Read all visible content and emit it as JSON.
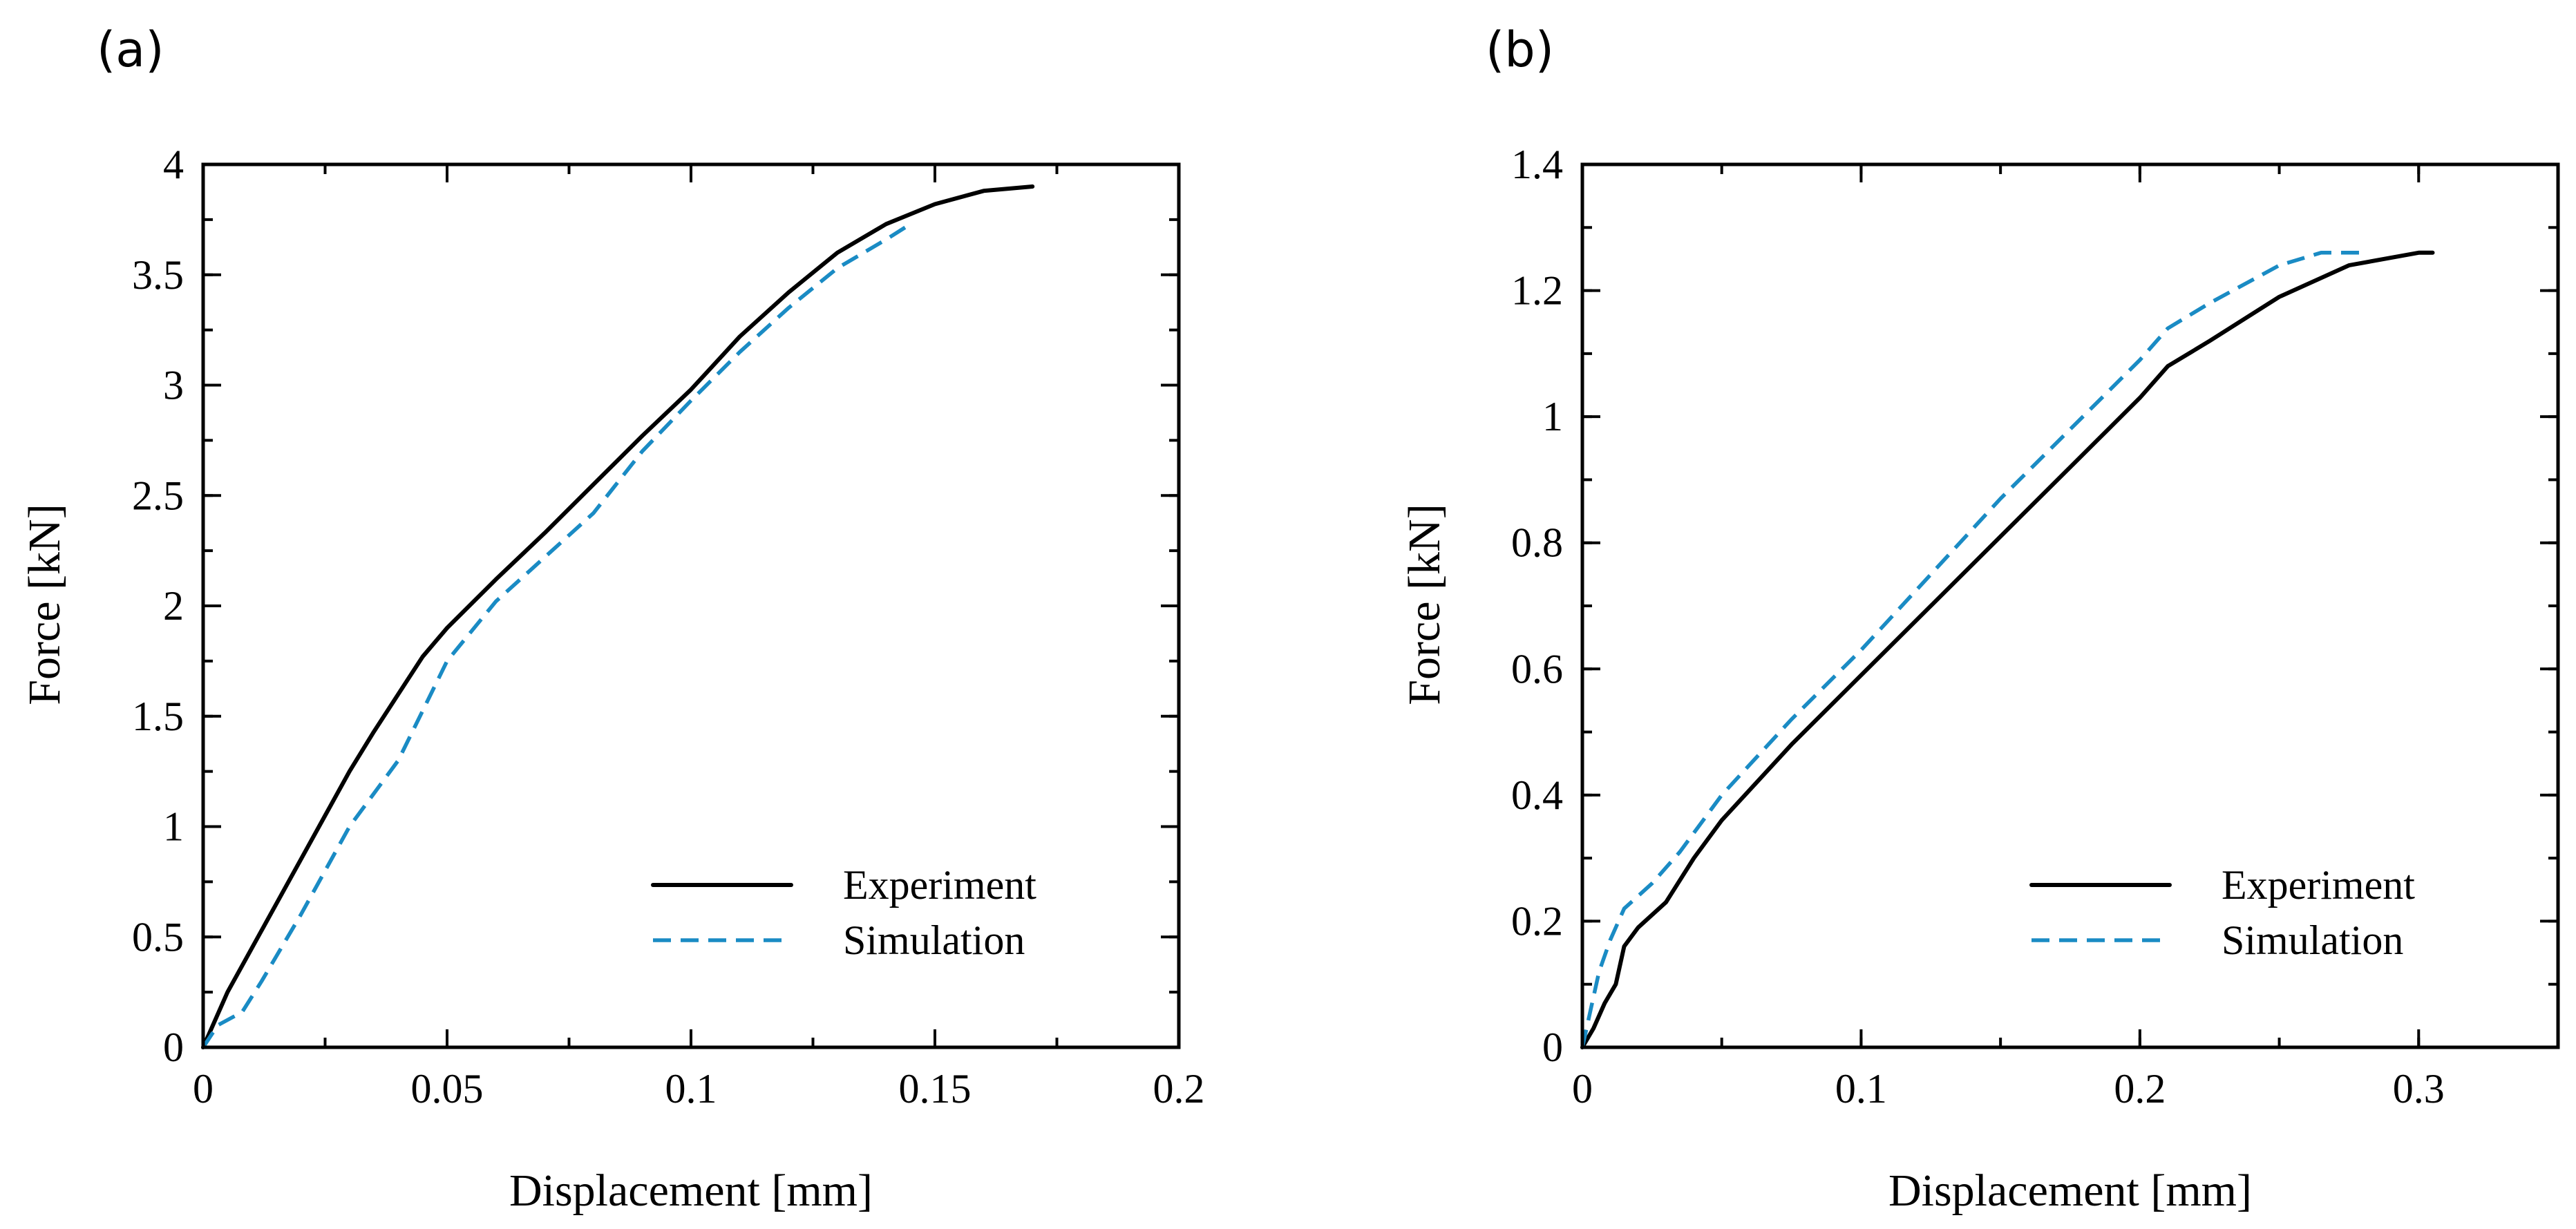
{
  "chart_data": [
    {
      "panel_label": "(a)",
      "type": "line",
      "title": "",
      "xlabel": "Displacement [mm]",
      "ylabel": "Force [kN]",
      "xlim": [
        0,
        0.2
      ],
      "ylim": [
        0,
        4
      ],
      "x_ticks": [
        0,
        0.05,
        0.1,
        0.15,
        0.2
      ],
      "x_tick_labels": [
        "0",
        "0.05",
        "0.1",
        "0.15",
        "0.2"
      ],
      "y_ticks": [
        0,
        0.5,
        1,
        1.5,
        2,
        2.5,
        3,
        3.5,
        4
      ],
      "y_tick_labels": [
        "0",
        "0.5",
        "1",
        "1.5",
        "2",
        "2.5",
        "3",
        "3.5",
        "4"
      ],
      "x_minor_step": 0.025,
      "y_minor_step": 0.25,
      "grid": false,
      "legend_position": "bottom-right",
      "series": [
        {
          "name": "Experiment",
          "color": "#000000",
          "style": "solid",
          "points": [
            [
              0,
              0
            ],
            [
              0.005,
              0.25
            ],
            [
              0.01,
              0.45
            ],
            [
              0.015,
              0.65
            ],
            [
              0.02,
              0.85
            ],
            [
              0.025,
              1.05
            ],
            [
              0.03,
              1.25
            ],
            [
              0.035,
              1.43
            ],
            [
              0.04,
              1.6
            ],
            [
              0.045,
              1.77
            ],
            [
              0.05,
              1.9
            ],
            [
              0.06,
              2.12
            ],
            [
              0.07,
              2.33
            ],
            [
              0.08,
              2.55
            ],
            [
              0.09,
              2.77
            ],
            [
              0.1,
              2.98
            ],
            [
              0.11,
              3.22
            ],
            [
              0.12,
              3.42
            ],
            [
              0.13,
              3.6
            ],
            [
              0.14,
              3.73
            ],
            [
              0.15,
              3.82
            ],
            [
              0.16,
              3.88
            ],
            [
              0.17,
              3.9
            ]
          ]
        },
        {
          "name": "Simulation",
          "color": "#1a8bc4",
          "style": "dashed",
          "points": [
            [
              0,
              0
            ],
            [
              0.003,
              0.1
            ],
            [
              0.008,
              0.16
            ],
            [
              0.012,
              0.3
            ],
            [
              0.02,
              0.6
            ],
            [
              0.03,
              1.0
            ],
            [
              0.04,
              1.3
            ],
            [
              0.05,
              1.75
            ],
            [
              0.06,
              2.02
            ],
            [
              0.07,
              2.22
            ],
            [
              0.08,
              2.42
            ],
            [
              0.09,
              2.7
            ],
            [
              0.1,
              2.93
            ],
            [
              0.11,
              3.15
            ],
            [
              0.12,
              3.35
            ],
            [
              0.13,
              3.53
            ],
            [
              0.14,
              3.66
            ],
            [
              0.145,
              3.73
            ]
          ]
        }
      ]
    },
    {
      "panel_label": "(b)",
      "type": "line",
      "title": "",
      "xlabel": "Displacement [mm]",
      "ylabel": "Force [kN]",
      "xlim": [
        0,
        0.35
      ],
      "ylim": [
        0,
        1.4
      ],
      "x_ticks": [
        0,
        0.1,
        0.2,
        0.3
      ],
      "x_tick_labels": [
        "0",
        "0.1",
        "0.2",
        "0.3"
      ],
      "y_ticks": [
        0,
        0.2,
        0.4,
        0.6,
        0.8,
        1.0,
        1.2,
        1.4
      ],
      "y_tick_labels": [
        "0",
        "0.2",
        "0.4",
        "0.6",
        "0.8",
        "1",
        "1.2",
        "1.4"
      ],
      "x_minor_step": 0.05,
      "y_minor_step": 0.1,
      "grid": false,
      "legend_position": "bottom-right",
      "series": [
        {
          "name": "Experiment",
          "color": "#000000",
          "style": "solid",
          "points": [
            [
              0,
              0
            ],
            [
              0.004,
              0.03
            ],
            [
              0.008,
              0.07
            ],
            [
              0.012,
              0.1
            ],
            [
              0.015,
              0.16
            ],
            [
              0.02,
              0.19
            ],
            [
              0.03,
              0.23
            ],
            [
              0.04,
              0.3
            ],
            [
              0.05,
              0.36
            ],
            [
              0.075,
              0.48
            ],
            [
              0.1,
              0.59
            ],
            [
              0.125,
              0.7
            ],
            [
              0.15,
              0.81
            ],
            [
              0.175,
              0.92
            ],
            [
              0.2,
              1.03
            ],
            [
              0.21,
              1.08
            ],
            [
              0.225,
              1.12
            ],
            [
              0.25,
              1.19
            ],
            [
              0.275,
              1.24
            ],
            [
              0.3,
              1.26
            ],
            [
              0.305,
              1.26
            ]
          ]
        },
        {
          "name": "Simulation",
          "color": "#1a8bc4",
          "style": "dashed",
          "points": [
            [
              0,
              0
            ],
            [
              0.003,
              0.06
            ],
            [
              0.006,
              0.12
            ],
            [
              0.01,
              0.17
            ],
            [
              0.015,
              0.22
            ],
            [
              0.025,
              0.26
            ],
            [
              0.035,
              0.31
            ],
            [
              0.05,
              0.4
            ],
            [
              0.075,
              0.52
            ],
            [
              0.1,
              0.63
            ],
            [
              0.125,
              0.75
            ],
            [
              0.15,
              0.87
            ],
            [
              0.175,
              0.98
            ],
            [
              0.2,
              1.09
            ],
            [
              0.21,
              1.14
            ],
            [
              0.225,
              1.18
            ],
            [
              0.25,
              1.24
            ],
            [
              0.265,
              1.26
            ],
            [
              0.28,
              1.26
            ]
          ]
        }
      ]
    }
  ]
}
